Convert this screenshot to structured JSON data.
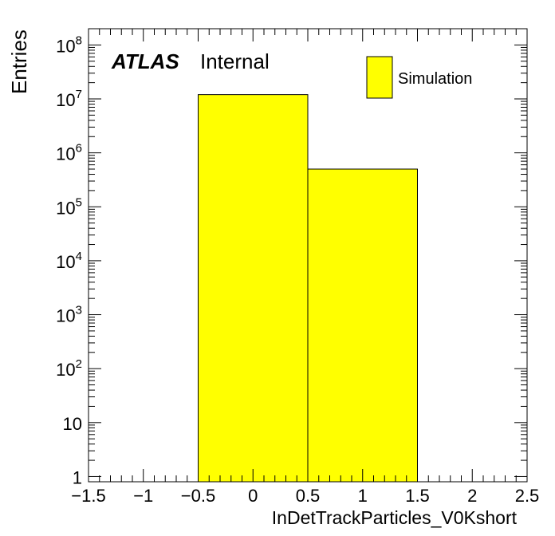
{
  "chart_data": {
    "type": "bar",
    "xlabel": "InDetTrackParticles_V0Kshort",
    "ylabel": "Entries",
    "xlim": [
      -1.5,
      2.5
    ],
    "ylim_log": [
      0.8,
      200000000
    ],
    "log_y": true,
    "bins": [
      {
        "low": -0.5,
        "high": 0.5,
        "value": 12000000
      },
      {
        "low": 0.5,
        "high": 1.5,
        "value": 500000
      }
    ],
    "x_ticks": [
      "−1.5",
      "−1",
      "−0.5",
      "0",
      "0.5",
      "1",
      "1.5",
      "2",
      "2.5"
    ],
    "x_tick_values": [
      -1.5,
      -1,
      -0.5,
      0,
      0.5,
      1,
      1.5,
      2,
      2.5
    ],
    "y_ticks": [
      {
        "value": 1,
        "base": "1",
        "exp": ""
      },
      {
        "value": 10,
        "base": "10",
        "exp": ""
      },
      {
        "value": 100,
        "base": "10",
        "exp": "2"
      },
      {
        "value": 1000,
        "base": "10",
        "exp": "3"
      },
      {
        "value": 10000,
        "base": "10",
        "exp": "4"
      },
      {
        "value": 100000,
        "base": "10",
        "exp": "5"
      },
      {
        "value": 1000000,
        "base": "10",
        "exp": "6"
      },
      {
        "value": 10000000,
        "base": "10",
        "exp": "7"
      },
      {
        "value": 100000000,
        "base": "10",
        "exp": "8"
      }
    ],
    "fill_color": "#ffff00",
    "legend": {
      "label": "Simulation",
      "placement": "top-right"
    },
    "atlas_label": "ATLAS",
    "atlas_status": "Internal"
  }
}
